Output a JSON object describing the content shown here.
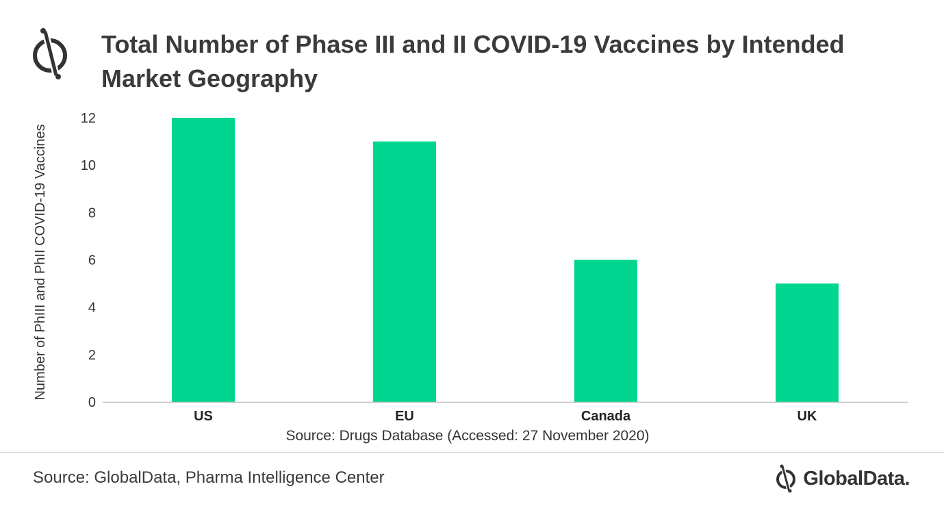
{
  "header": {
    "title": "Total Number of Phase III and II COVID-19 Vaccines by Intended Market Geography",
    "logo_icon": "globaldata-logo-icon"
  },
  "chart_data": {
    "type": "bar",
    "title": "Total Number of Phase III and II COVID-19 Vaccines by Intended Market Geography",
    "xlabel": "",
    "ylabel": "Number of PhIII and PhII COVID-19 Vaccines",
    "categories": [
      "US",
      "EU",
      "Canada",
      "UK"
    ],
    "values": [
      12,
      11,
      6,
      5
    ],
    "ylim": [
      0,
      12
    ],
    "yticks": [
      "0",
      "2",
      "4",
      "6",
      "8",
      "10",
      "12"
    ],
    "grid": false,
    "legend": "none",
    "bar_color": "#00d68f",
    "note": "Source: Drugs Database (Accessed: 27 November 2020)"
  },
  "footer": {
    "source": "Source: GlobalData, Pharma Intelligence Center",
    "brand": "GlobalData."
  }
}
